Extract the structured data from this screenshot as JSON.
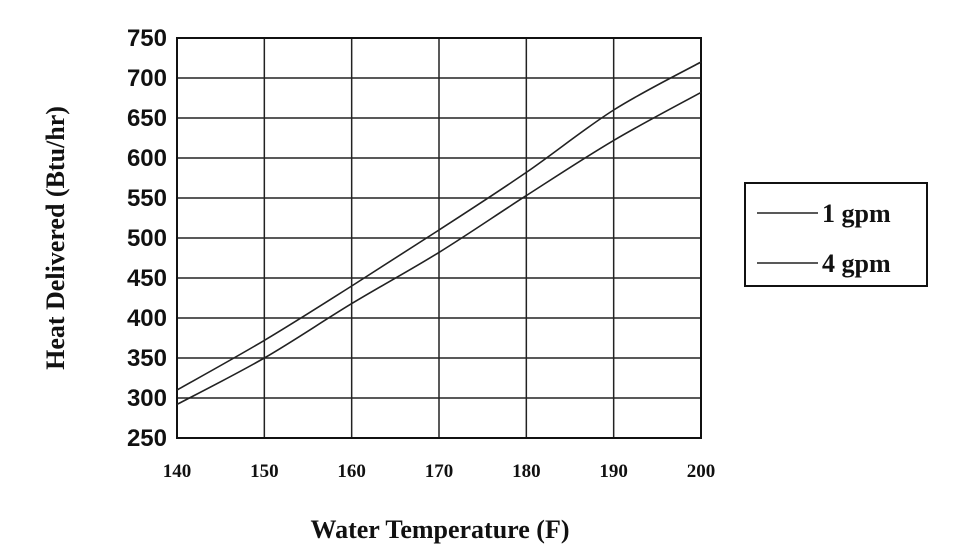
{
  "chart_data": {
    "type": "line",
    "xlabel": "Water Temperature (F)",
    "ylabel": "Heat Delivered (Btu/hr)",
    "xlim": [
      140,
      200
    ],
    "ylim": [
      250,
      750
    ],
    "x_ticks": [
      "140",
      "150",
      "160",
      "170",
      "180",
      "190",
      "200"
    ],
    "y_ticks": [
      "750",
      "700",
      "650",
      "600",
      "550",
      "500",
      "450",
      "400",
      "350",
      "300",
      "250"
    ],
    "grid": true,
    "legend_position": "right",
    "series": [
      {
        "name": "1 gpm",
        "x": [
          140,
          150,
          160,
          170,
          180,
          190,
          200
        ],
        "values": [
          310,
          372,
          440,
          510,
          582,
          660,
          720
        ]
      },
      {
        "name": "4 gpm",
        "x": [
          140,
          150,
          160,
          170,
          180,
          190,
          200
        ],
        "values": [
          292,
          350,
          418,
          482,
          553,
          622,
          682
        ]
      }
    ]
  }
}
